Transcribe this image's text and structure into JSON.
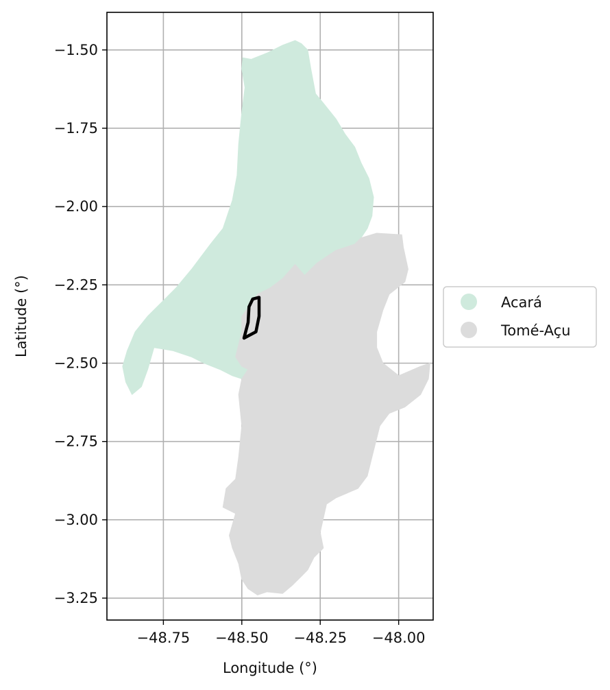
{
  "chart_data": {
    "type": "map",
    "xlabel": "Longitude (°)",
    "ylabel": "Latitude (°)",
    "xlim": [
      -48.93,
      -47.89
    ],
    "ylim": [
      -3.32,
      -1.38
    ],
    "x_ticks": [
      {
        "value": -48.75,
        "label": "−48.75"
      },
      {
        "value": -48.5,
        "label": "−48.50"
      },
      {
        "value": -48.25,
        "label": "−48.25"
      },
      {
        "value": -48.0,
        "label": "−48.00"
      }
    ],
    "y_ticks": [
      {
        "value": -1.5,
        "label": "−1.50"
      },
      {
        "value": -1.75,
        "label": "−1.75"
      },
      {
        "value": -2.0,
        "label": "−2.00"
      },
      {
        "value": -2.25,
        "label": "−2.25"
      },
      {
        "value": -2.5,
        "label": "−2.50"
      },
      {
        "value": -2.75,
        "label": "−2.75"
      },
      {
        "value": -3.0,
        "label": "−3.00"
      },
      {
        "value": -3.25,
        "label": "−3.25"
      }
    ],
    "grid": true,
    "legend_placement": "right",
    "regions": [
      {
        "name": "Acará",
        "color": "#cfeadd",
        "polygon": [
          [
            -48.497,
            -1.525
          ],
          [
            -48.47,
            -1.53
          ],
          [
            -48.42,
            -1.51
          ],
          [
            -48.37,
            -1.485
          ],
          [
            -48.33,
            -1.47
          ],
          [
            -48.31,
            -1.48
          ],
          [
            -48.29,
            -1.5
          ],
          [
            -48.28,
            -1.56
          ],
          [
            -48.265,
            -1.64
          ],
          [
            -48.24,
            -1.67
          ],
          [
            -48.2,
            -1.72
          ],
          [
            -48.17,
            -1.77
          ],
          [
            -48.14,
            -1.81
          ],
          [
            -48.12,
            -1.86
          ],
          [
            -48.095,
            -1.91
          ],
          [
            -48.08,
            -1.97
          ],
          [
            -48.085,
            -2.03
          ],
          [
            -48.1,
            -2.07
          ],
          [
            -48.12,
            -2.1
          ],
          [
            -48.14,
            -2.12
          ],
          [
            -48.2,
            -2.14
          ],
          [
            -48.23,
            -2.16
          ],
          [
            -48.26,
            -2.18
          ],
          [
            -48.3,
            -2.22
          ],
          [
            -48.33,
            -2.185
          ],
          [
            -48.37,
            -2.23
          ],
          [
            -48.41,
            -2.26
          ],
          [
            -48.45,
            -2.28
          ],
          [
            -48.47,
            -2.31
          ],
          [
            -48.5,
            -2.35
          ],
          [
            -48.5,
            -2.4
          ],
          [
            -48.51,
            -2.44
          ],
          [
            -48.52,
            -2.48
          ],
          [
            -48.5,
            -2.51
          ],
          [
            -48.48,
            -2.52
          ],
          [
            -48.5,
            -2.55
          ],
          [
            -48.53,
            -2.54
          ],
          [
            -48.57,
            -2.52
          ],
          [
            -48.62,
            -2.5
          ],
          [
            -48.66,
            -2.48
          ],
          [
            -48.72,
            -2.46
          ],
          [
            -48.78,
            -2.45
          ],
          [
            -48.8,
            -2.52
          ],
          [
            -48.82,
            -2.575
          ],
          [
            -48.85,
            -2.6
          ],
          [
            -48.87,
            -2.56
          ],
          [
            -48.88,
            -2.51
          ],
          [
            -48.865,
            -2.46
          ],
          [
            -48.84,
            -2.4
          ],
          [
            -48.8,
            -2.35
          ],
          [
            -48.75,
            -2.3
          ],
          [
            -48.71,
            -2.26
          ],
          [
            -48.66,
            -2.2
          ],
          [
            -48.6,
            -2.12
          ],
          [
            -48.56,
            -2.07
          ],
          [
            -48.53,
            -1.98
          ],
          [
            -48.515,
            -1.9
          ],
          [
            -48.51,
            -1.8
          ],
          [
            -48.5,
            -1.7
          ],
          [
            -48.49,
            -1.62
          ],
          [
            -48.5,
            -1.56
          ]
        ]
      },
      {
        "name": "Tomé-Açu",
        "color": "#dcdcdc",
        "polygon": [
          [
            -48.12,
            -2.1
          ],
          [
            -48.07,
            -2.085
          ],
          [
            -47.99,
            -2.09
          ],
          [
            -47.985,
            -2.13
          ],
          [
            -47.97,
            -2.2
          ],
          [
            -47.98,
            -2.24
          ],
          [
            -48.03,
            -2.28
          ],
          [
            -48.05,
            -2.33
          ],
          [
            -48.07,
            -2.4
          ],
          [
            -48.07,
            -2.45
          ],
          [
            -48.05,
            -2.5
          ],
          [
            -48.0,
            -2.54
          ],
          [
            -47.93,
            -2.51
          ],
          [
            -47.9,
            -2.5
          ],
          [
            -47.905,
            -2.55
          ],
          [
            -47.93,
            -2.6
          ],
          [
            -47.98,
            -2.64
          ],
          [
            -48.03,
            -2.66
          ],
          [
            -48.06,
            -2.7
          ],
          [
            -48.08,
            -2.78
          ],
          [
            -48.1,
            -2.86
          ],
          [
            -48.13,
            -2.9
          ],
          [
            -48.2,
            -2.93
          ],
          [
            -48.23,
            -2.95
          ],
          [
            -48.25,
            -3.04
          ],
          [
            -48.24,
            -3.09
          ],
          [
            -48.27,
            -3.12
          ],
          [
            -48.29,
            -3.16
          ],
          [
            -48.31,
            -3.18
          ],
          [
            -48.34,
            -3.21
          ],
          [
            -48.37,
            -3.235
          ],
          [
            -48.42,
            -3.23
          ],
          [
            -48.45,
            -3.24
          ],
          [
            -48.48,
            -3.22
          ],
          [
            -48.5,
            -3.19
          ],
          [
            -48.51,
            -3.14
          ],
          [
            -48.53,
            -3.09
          ],
          [
            -48.54,
            -3.05
          ],
          [
            -48.52,
            -2.98
          ],
          [
            -48.56,
            -2.96
          ],
          [
            -48.55,
            -2.9
          ],
          [
            -48.52,
            -2.87
          ],
          [
            -48.51,
            -2.8
          ],
          [
            -48.5,
            -2.7
          ],
          [
            -48.51,
            -2.6
          ],
          [
            -48.5,
            -2.55
          ],
          [
            -48.48,
            -2.52
          ],
          [
            -48.5,
            -2.51
          ],
          [
            -48.52,
            -2.48
          ],
          [
            -48.51,
            -2.44
          ],
          [
            -48.5,
            -2.4
          ],
          [
            -48.5,
            -2.35
          ],
          [
            -48.47,
            -2.31
          ],
          [
            -48.45,
            -2.28
          ],
          [
            -48.41,
            -2.26
          ],
          [
            -48.37,
            -2.23
          ],
          [
            -48.33,
            -2.185
          ],
          [
            -48.3,
            -2.22
          ],
          [
            -48.26,
            -2.18
          ],
          [
            -48.23,
            -2.16
          ],
          [
            -48.2,
            -2.14
          ],
          [
            -48.14,
            -2.12
          ]
        ]
      }
    ],
    "highlight_outline": {
      "color": "#000000",
      "polygon": [
        [
          -48.48,
          -2.37
        ],
        [
          -48.477,
          -2.32
        ],
        [
          -48.465,
          -2.295
        ],
        [
          -48.445,
          -2.29
        ],
        [
          -48.445,
          -2.35
        ],
        [
          -48.455,
          -2.4
        ],
        [
          -48.493,
          -2.42
        ]
      ]
    },
    "legend": [
      {
        "label": "Acará",
        "color": "#cfeadd"
      },
      {
        "label": "Tomé-Açu",
        "color": "#dcdcdc"
      }
    ]
  }
}
